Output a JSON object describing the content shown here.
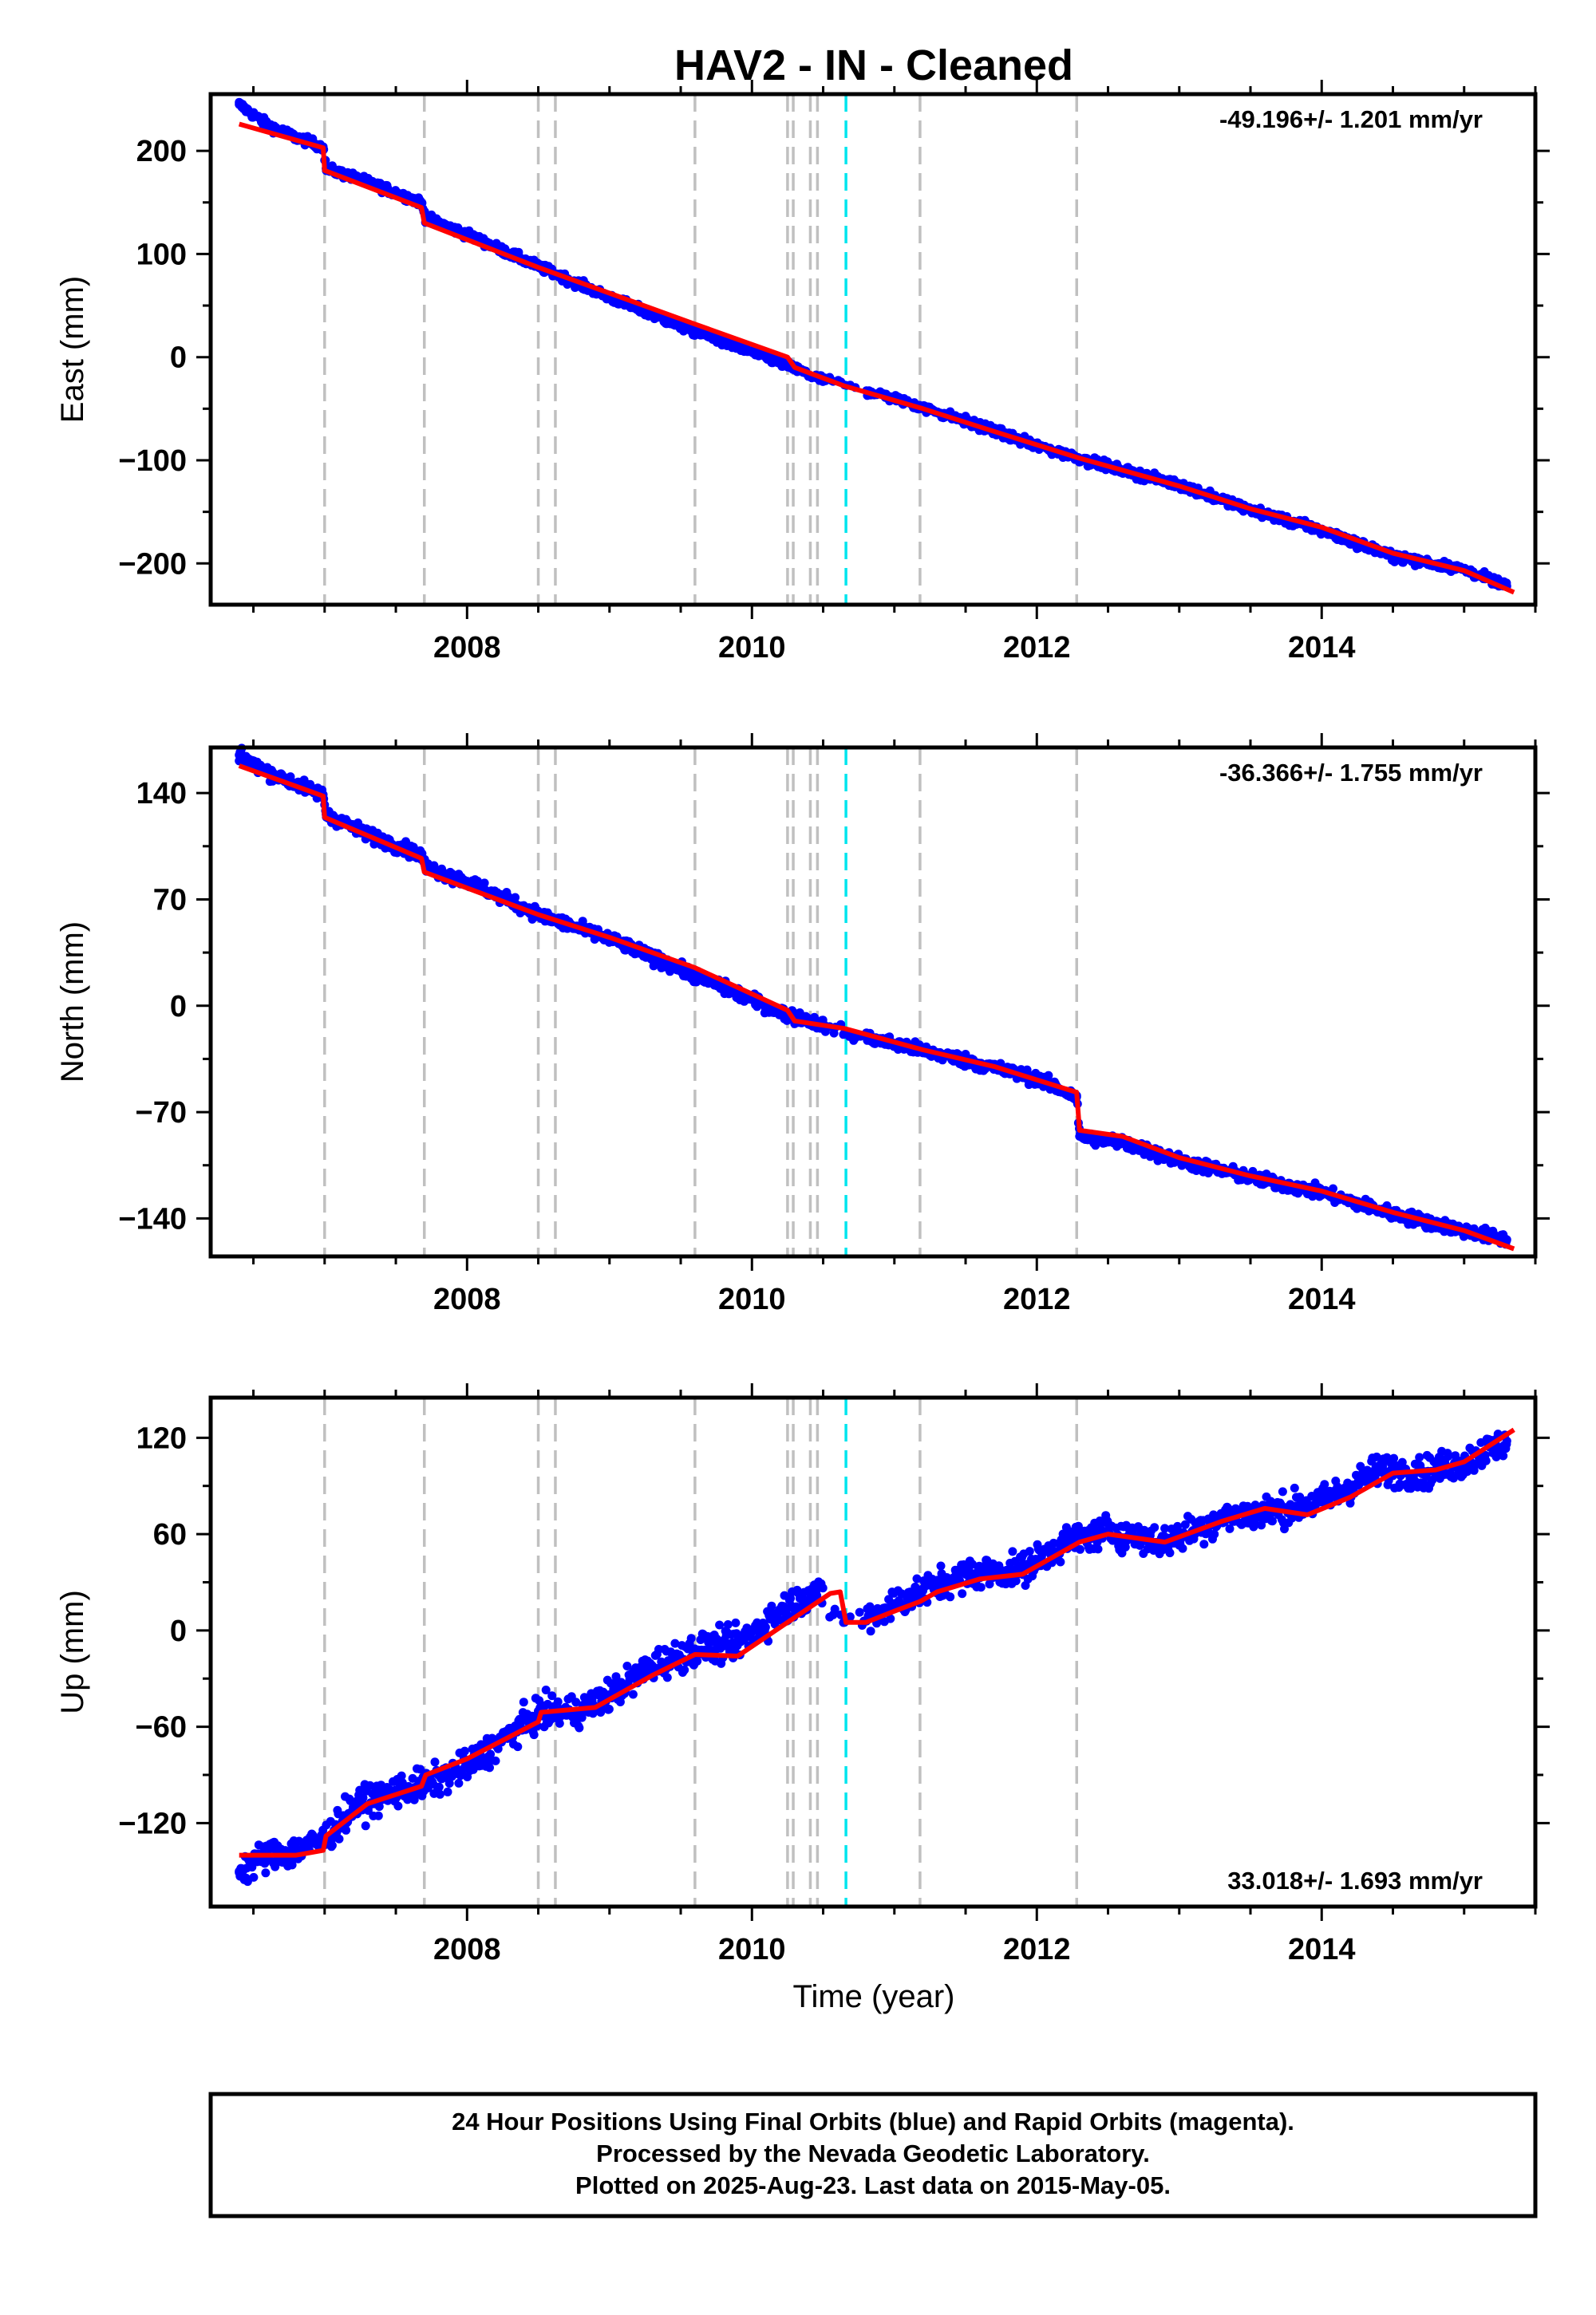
{
  "title": "HAV2  - IN - Cleaned",
  "xlabel": "Time (year)",
  "footer": [
    "24 Hour Positions Using Final Orbits (blue) and Rapid Orbits (magenta).",
    "Processed by the Nevada Geodetic Laboratory.",
    "Plotted on 2025-Aug-23. Last data on 2015-May-05."
  ],
  "colors": {
    "data": "#0000ff",
    "model": "#ff0000",
    "offset": "#c0c0c0",
    "event": "#00e5ee",
    "frame": "#000000"
  },
  "chart_data": [
    {
      "type": "scatter",
      "panel": "east",
      "ylabel": "East (mm)",
      "rate_label": "-49.196+/- 1.201 mm/yr",
      "rate_position": "top-right",
      "xlim": [
        2006.2,
        2015.5
      ],
      "ylim": [
        -240,
        255
      ],
      "x_ticks": [
        2008,
        2010,
        2012,
        2014
      ],
      "y_ticks": [
        -200,
        -100,
        0,
        100,
        200
      ],
      "series": [
        {
          "role": "data",
          "points": [
            [
              2006.4,
              245
            ],
            [
              2006.6,
              225
            ],
            [
              2006.8,
              213
            ],
            [
              2006.99,
              204
            ],
            [
              2007.01,
              183
            ],
            [
              2007.3,
              170
            ],
            [
              2007.68,
              150
            ],
            [
              2007.71,
              135
            ],
            [
              2008.0,
              119
            ],
            [
              2008.5,
              88
            ],
            [
              2009.0,
              58
            ],
            [
              2009.5,
              30
            ],
            [
              2010.0,
              5
            ],
            [
              2010.25,
              -8
            ],
            [
              2010.45,
              -20
            ],
            [
              2010.65,
              -27
            ],
            [
              2011.0,
              -40
            ],
            [
              2011.5,
              -62
            ],
            [
              2012.0,
              -86
            ],
            [
              2012.5,
              -106
            ],
            [
              2013.0,
              -124
            ],
            [
              2013.5,
              -148
            ],
            [
              2014.0,
              -168
            ],
            [
              2014.5,
              -193
            ],
            [
              2015.0,
              -206
            ],
            [
              2015.3,
              -222
            ]
          ]
        },
        {
          "role": "model",
          "points": [
            [
              2006.4,
              226
            ],
            [
              2006.99,
              203
            ],
            [
              2007.0,
              181
            ],
            [
              2007.68,
              145
            ],
            [
              2007.7,
              130
            ],
            [
              2008.5,
              87
            ],
            [
              2009.0,
              62
            ],
            [
              2009.6,
              32
            ],
            [
              2010.25,
              0
            ],
            [
              2010.3,
              -10
            ],
            [
              2010.65,
              -28
            ],
            [
              2011.2,
              -50
            ],
            [
              2011.7,
              -72
            ],
            [
              2012.3,
              -98
            ],
            [
              2013.0,
              -125
            ],
            [
              2013.5,
              -147
            ],
            [
              2014.0,
              -165
            ],
            [
              2014.5,
              -190
            ],
            [
              2015.0,
              -207
            ],
            [
              2015.35,
              -228
            ]
          ]
        }
      ]
    },
    {
      "type": "scatter",
      "panel": "north",
      "ylabel": "North (mm)",
      "rate_label": "-36.366+/- 1.755 mm/yr",
      "rate_position": "top-right",
      "xlim": [
        2006.2,
        2015.5
      ],
      "ylim": [
        -165,
        170
      ],
      "x_ticks": [
        2008,
        2010,
        2012,
        2014
      ],
      "y_ticks": [
        -140,
        -70,
        0,
        70,
        140
      ],
      "series": [
        {
          "role": "data",
          "points": [
            [
              2006.4,
              165
            ],
            [
              2006.6,
              154
            ],
            [
              2006.8,
              146
            ],
            [
              2006.99,
              139
            ],
            [
              2007.01,
              126
            ],
            [
              2007.3,
              113
            ],
            [
              2007.68,
              99
            ],
            [
              2007.71,
              91
            ],
            [
              2008.0,
              82
            ],
            [
              2008.5,
              60
            ],
            [
              2009.0,
              44
            ],
            [
              2009.5,
              24
            ],
            [
              2010.0,
              4
            ],
            [
              2010.25,
              -6
            ],
            [
              2010.45,
              -11
            ],
            [
              2010.65,
              -18
            ],
            [
              2011.0,
              -25
            ],
            [
              2011.5,
              -36
            ],
            [
              2012.0,
              -48
            ],
            [
              2012.28,
              -60
            ],
            [
              2012.3,
              -86
            ],
            [
              2012.6,
              -90
            ],
            [
              2013.0,
              -102
            ],
            [
              2013.5,
              -113
            ],
            [
              2014.0,
              -123
            ],
            [
              2014.5,
              -137
            ],
            [
              2015.0,
              -148
            ],
            [
              2015.3,
              -154
            ]
          ]
        },
        {
          "role": "model",
          "points": [
            [
              2006.4,
              158
            ],
            [
              2006.99,
              138
            ],
            [
              2007.0,
              124
            ],
            [
              2007.68,
              97
            ],
            [
              2007.7,
              88
            ],
            [
              2008.5,
              60
            ],
            [
              2009.0,
              45
            ],
            [
              2009.6,
              25
            ],
            [
              2010.25,
              -3
            ],
            [
              2010.3,
              -10
            ],
            [
              2010.65,
              -15
            ],
            [
              2011.2,
              -29
            ],
            [
              2011.7,
              -40
            ],
            [
              2012.28,
              -57
            ],
            [
              2012.3,
              -82
            ],
            [
              2012.6,
              -86
            ],
            [
              2013.0,
              -100
            ],
            [
              2013.5,
              -112
            ],
            [
              2014.0,
              -122
            ],
            [
              2014.5,
              -136
            ],
            [
              2015.0,
              -148
            ],
            [
              2015.35,
              -160
            ]
          ]
        }
      ]
    },
    {
      "type": "scatter",
      "panel": "up",
      "ylabel": "Up (mm)",
      "rate_label": "33.018+/- 1.693 mm/yr",
      "rate_position": "bottom-right",
      "xlim": [
        2006.2,
        2015.5
      ],
      "ylim": [
        -172,
        145
      ],
      "x_ticks": [
        2008,
        2010,
        2012,
        2014
      ],
      "y_ticks": [
        -120,
        -60,
        0,
        60,
        120
      ],
      "series": [
        {
          "role": "data",
          "points": [
            [
              2006.4,
              -150
            ],
            [
              2006.6,
              -140
            ],
            [
              2006.8,
              -138
            ],
            [
              2007.0,
              -130
            ],
            [
              2007.2,
              -110
            ],
            [
              2007.5,
              -100
            ],
            [
              2007.75,
              -95
            ],
            [
              2008.0,
              -85
            ],
            [
              2008.3,
              -65
            ],
            [
              2008.5,
              -52
            ],
            [
              2008.8,
              -50
            ],
            [
              2009.0,
              -40
            ],
            [
              2009.3,
              -22
            ],
            [
              2009.6,
              -12
            ],
            [
              2009.9,
              -8
            ],
            [
              2010.2,
              12
            ],
            [
              2010.45,
              25
            ],
            [
              2010.65,
              5
            ],
            [
              2010.9,
              12
            ],
            [
              2011.2,
              25
            ],
            [
              2011.5,
              35
            ],
            [
              2011.9,
              38
            ],
            [
              2012.2,
              55
            ],
            [
              2012.5,
              62
            ],
            [
              2012.9,
              55
            ],
            [
              2013.3,
              70
            ],
            [
              2013.7,
              75
            ],
            [
              2014.0,
              80
            ],
            [
              2014.4,
              100
            ],
            [
              2014.7,
              98
            ],
            [
              2015.0,
              105
            ],
            [
              2015.3,
              118
            ]
          ]
        },
        {
          "role": "model",
          "points": [
            [
              2006.4,
              -140
            ],
            [
              2006.8,
              -140
            ],
            [
              2006.99,
              -137
            ],
            [
              2007.01,
              -128
            ],
            [
              2007.3,
              -108
            ],
            [
              2007.68,
              -97
            ],
            [
              2007.71,
              -90
            ],
            [
              2008.0,
              -80
            ],
            [
              2008.5,
              -57
            ],
            [
              2008.52,
              -51
            ],
            [
              2008.9,
              -48
            ],
            [
              2009.3,
              -28
            ],
            [
              2009.6,
              -15
            ],
            [
              2009.9,
              -16
            ],
            [
              2010.3,
              8
            ],
            [
              2010.55,
              23
            ],
            [
              2010.62,
              24
            ],
            [
              2010.66,
              5
            ],
            [
              2010.8,
              5
            ],
            [
              2011.0,
              12
            ],
            [
              2011.18,
              18
            ],
            [
              2011.3,
              24
            ],
            [
              2011.6,
              32
            ],
            [
              2011.9,
              35
            ],
            [
              2012.3,
              55
            ],
            [
              2012.5,
              60
            ],
            [
              2012.9,
              55
            ],
            [
              2013.3,
              68
            ],
            [
              2013.6,
              76
            ],
            [
              2013.9,
              72
            ],
            [
              2014.2,
              83
            ],
            [
              2014.5,
              98
            ],
            [
              2014.8,
              100
            ],
            [
              2015.0,
              105
            ],
            [
              2015.35,
              125
            ]
          ]
        }
      ]
    }
  ],
  "events": {
    "offsets": [
      2007.0,
      2007.7,
      2008.5,
      2008.62,
      2009.6,
      2010.25,
      2010.29,
      2010.41,
      2010.46,
      2011.18,
      2012.28
    ],
    "highlight": [
      2010.66
    ]
  }
}
